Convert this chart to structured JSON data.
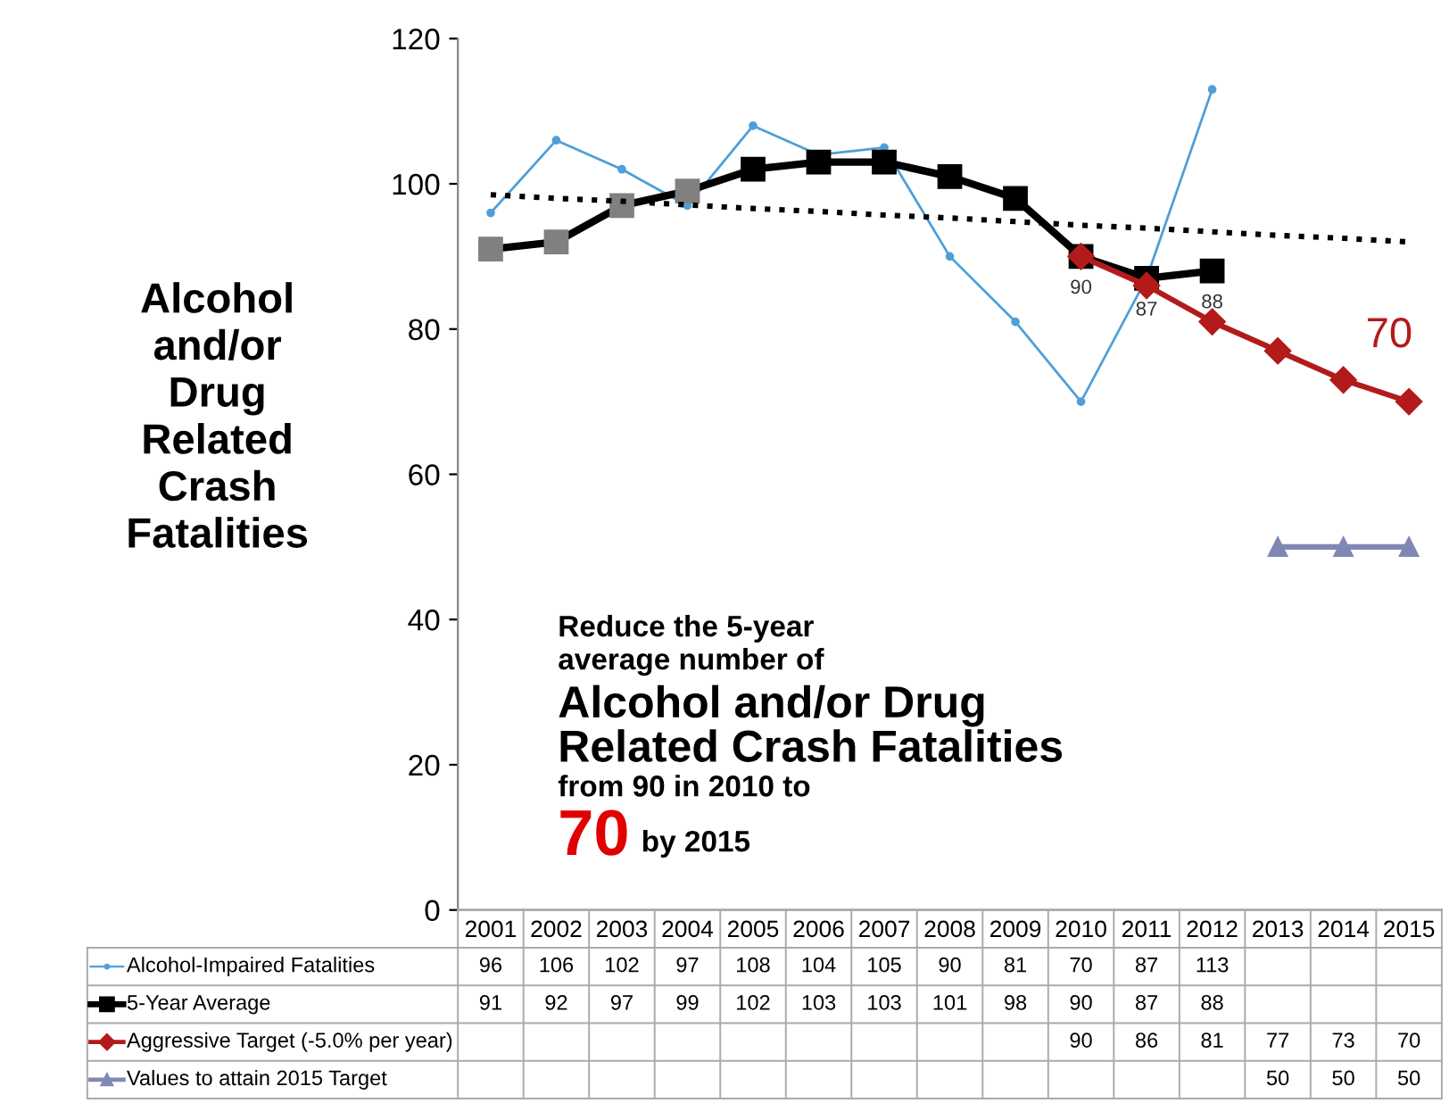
{
  "chart_data": {
    "type": "line",
    "title": "Alcohol\nand/or\nDrug\nRelated\nCrash\nFatalities",
    "categories": [
      "2001",
      "2002",
      "2003",
      "2004",
      "2005",
      "2006",
      "2007",
      "2008",
      "2009",
      "2010",
      "2011",
      "2012",
      "2013",
      "2014",
      "2015"
    ],
    "series": [
      {
        "name": "Alcohol-Impaired Fatalities",
        "color": "#4f9fd8",
        "marker": "circle",
        "values": [
          96,
          106,
          102,
          97,
          108,
          104,
          105,
          90,
          81,
          70,
          87,
          113,
          null,
          null,
          null
        ]
      },
      {
        "name": "5-Year Average",
        "color": "#000000",
        "marker": "square",
        "colors": [
          "#808080",
          "#808080",
          "#808080",
          "#808080",
          "#000000",
          "#000000",
          "#000000",
          "#000000",
          "#000000",
          "#000000",
          "#000000",
          "#000000",
          null,
          null,
          null
        ],
        "values": [
          91,
          92,
          97,
          99,
          102,
          103,
          103,
          101,
          98,
          90,
          87,
          88,
          null,
          null,
          null
        ]
      },
      {
        "name": "Aggressive Target (-5.0% per year)",
        "color": "#b31b1b",
        "marker": "diamond",
        "values": [
          null,
          null,
          null,
          null,
          null,
          null,
          null,
          null,
          null,
          90,
          86,
          81,
          77,
          73,
          70
        ]
      },
      {
        "name": "Values to attain 2015 Target",
        "color": "#7f88b5",
        "marker": "triangle",
        "values": [
          null,
          null,
          null,
          null,
          null,
          null,
          null,
          null,
          null,
          null,
          null,
          null,
          50,
          50,
          50
        ]
      },
      {
        "type": "line",
        "color": "#000000",
        "line_style": "dotted",
        "values": [
          98.5,
          98.0,
          97.6,
          97.1,
          96.6,
          96.2,
          95.7,
          95.3,
          94.8,
          94.3,
          93.9,
          93.4,
          92.9,
          92.5,
          92.0
        ],
        "value_labels": [
          null,
          null,
          null,
          null,
          null,
          null,
          null,
          null,
          null,
          null,
          null,
          null,
          null,
          null,
          null
        ]
      }
    ],
    "ylim": [
      0,
      120
    ],
    "yticks": [
      0,
      20,
      40,
      60,
      80,
      100,
      120
    ],
    "legend": "bottom",
    "grid": false,
    "data_labels": true,
    "annotations": [
      "Reduce the 5-year",
      "average number of",
      "Alcohol and/or Drug",
      "Related Crash Fatalities",
      "from 90 in 2010 to",
      "70 by 2015",
      {
        "text": "90",
        "x": "2010",
        "y": 90
      },
      {
        "text": "87",
        "x": "2011",
        "y": 87
      },
      {
        "text": "88",
        "x": "2012",
        "y": 88
      },
      {
        "text": "70",
        "x": "2015",
        "y": 70
      }
    ]
  }
}
